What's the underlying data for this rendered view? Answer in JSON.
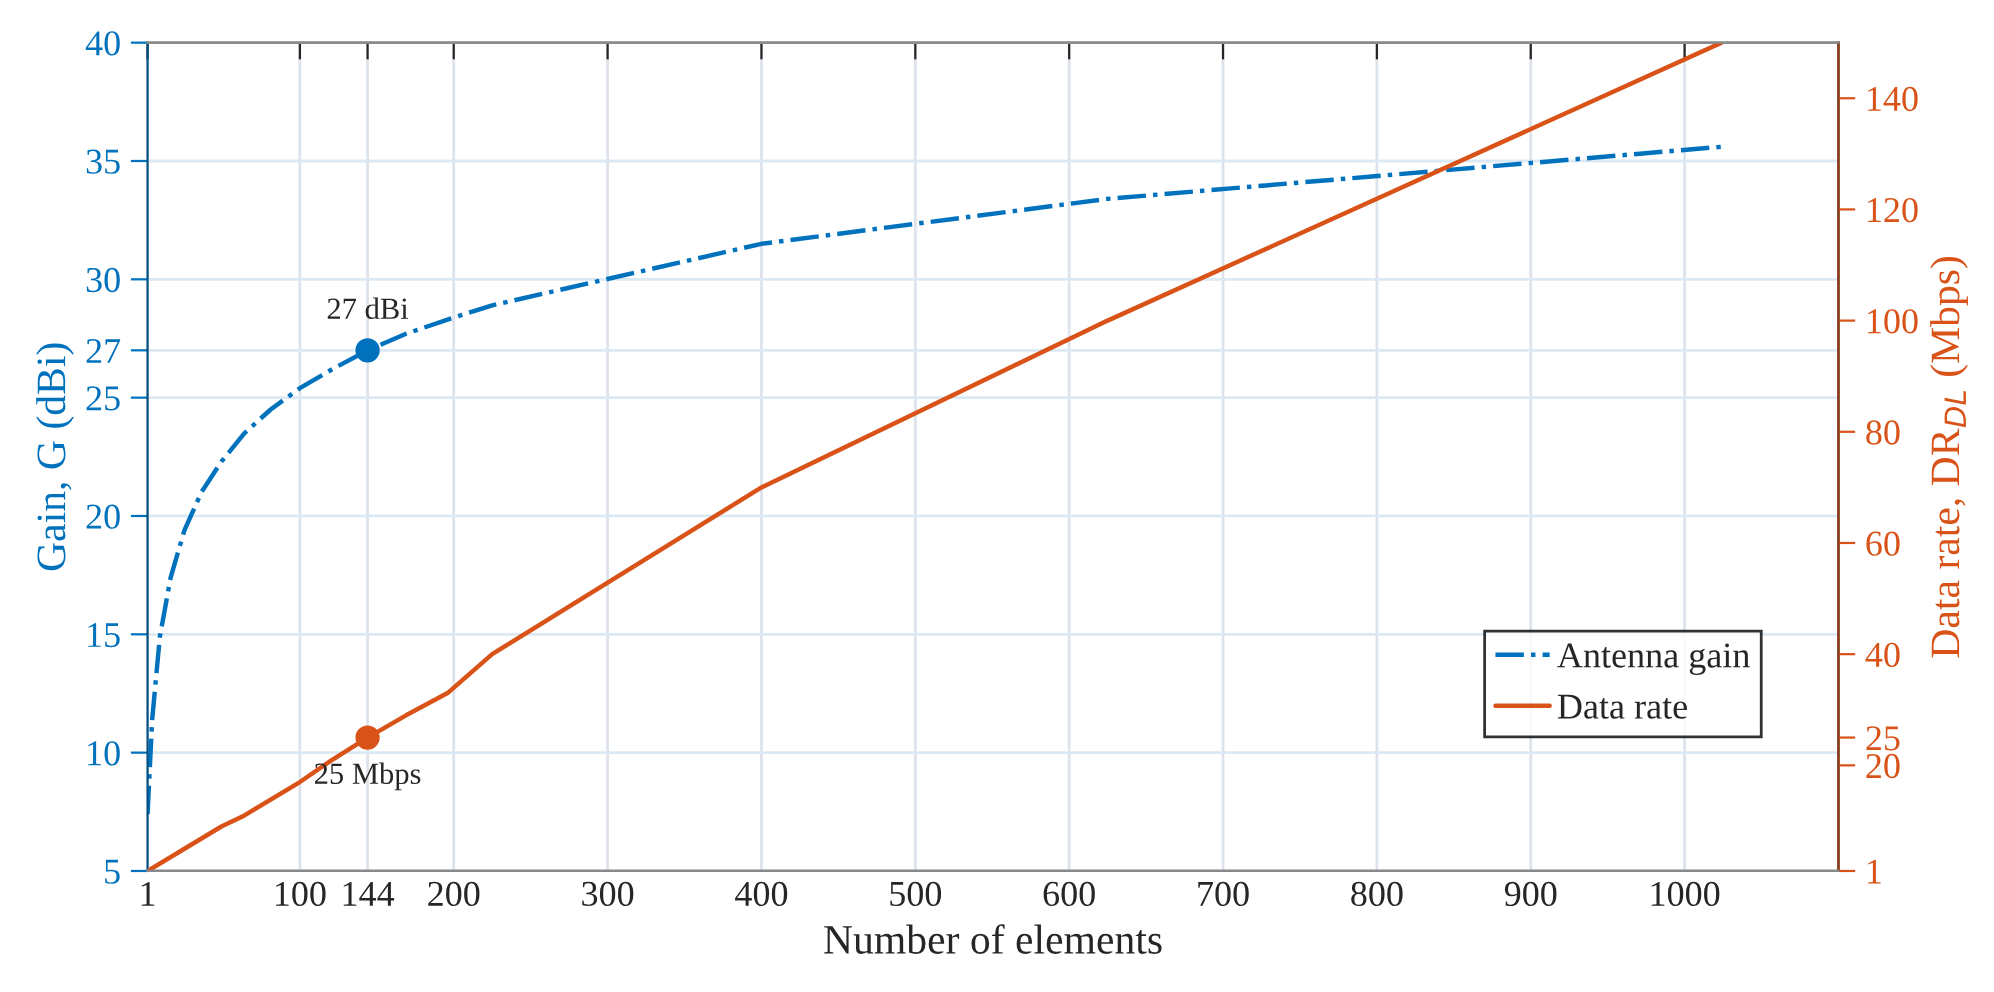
{
  "chart_data": {
    "type": "line",
    "xlabel": "Number of elements",
    "ylabel": "Gain, G (dBi)",
    "y2label": "Data rate, DR$_{DL}$ (Mbps)",
    "xlim": [
      1,
      1100
    ],
    "xticks": [
      1,
      100,
      144,
      200,
      300,
      400,
      500,
      600,
      700,
      800,
      900,
      1000
    ],
    "ylim": [
      5,
      40
    ],
    "yticks": [
      5,
      10,
      15,
      20,
      25,
      27,
      30,
      35,
      40
    ],
    "y2lim": [
      1,
      150
    ],
    "y2ticks": [
      1,
      20,
      25,
      40,
      60,
      80,
      100,
      120,
      140
    ],
    "grid": true,
    "legend": "bottom right",
    "series": [
      {
        "name": "Antenna gain",
        "line_style": "dashdot",
        "color": "#0072bd",
        "x": [
          1,
          4,
          9,
          16,
          25,
          36,
          49,
          64,
          81,
          100,
          121,
          144,
          169,
          196,
          225,
          400,
          625,
          1024
        ],
        "values": [
          7.4,
          11.4,
          14.9,
          17.4,
          19.4,
          21,
          22.3,
          23.5,
          24.5,
          25.4,
          26.2,
          27,
          27.7,
          28.3,
          28.9,
          31.5,
          33.4,
          35.6
        ]
      },
      {
        "name": "Data rate",
        "line_style": "solid",
        "axis": "y2",
        "color": "#d95319",
        "x": [
          1,
          25,
          49,
          64,
          100,
          121,
          144,
          169,
          196,
          225,
          400,
          625,
          1024
        ],
        "values": [
          1,
          5,
          9,
          11,
          17,
          21,
          25,
          29,
          33,
          40,
          70,
          100,
          150
        ]
      },
      {
        "type": "scatter",
        "marker": "circle",
        "color": "#0072bd",
        "x": [
          144
        ],
        "values": [
          27
        ]
      },
      {
        "type": "scatter",
        "marker": "circle",
        "axis": "y2",
        "color": "#d95319",
        "x": [
          144
        ],
        "values": [
          25
        ]
      }
    ],
    "annotations": [
      {
        "text": "27 dBi",
        "x": 144,
        "y": 27
      },
      "25 Mbps"
    ]
  }
}
